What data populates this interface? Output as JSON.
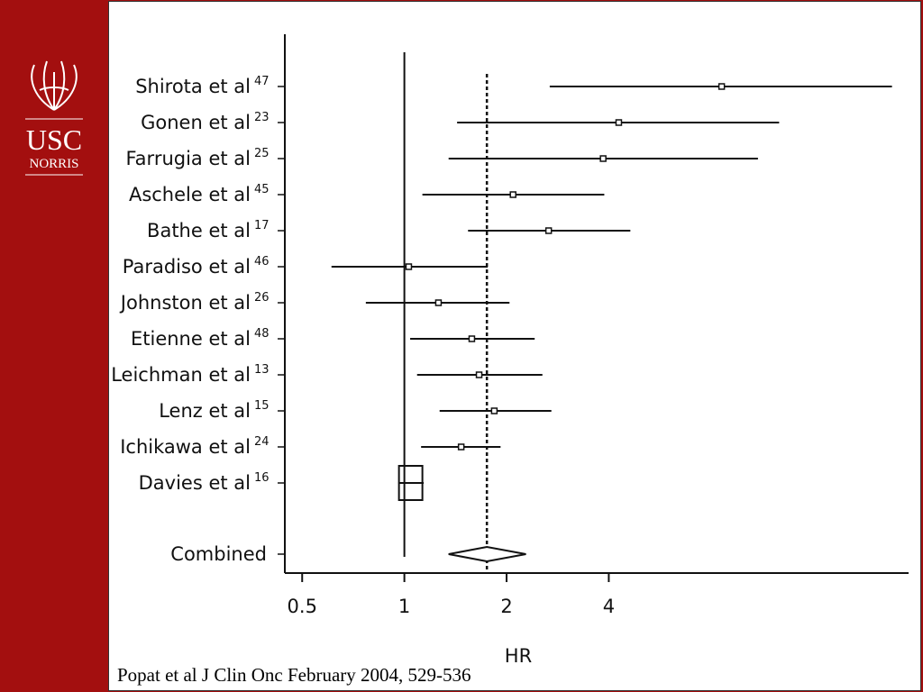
{
  "logo": {
    "name": "USC",
    "subname": "NORRIS"
  },
  "citation": "Popat et al J Clin Onc February 2004, 529-536",
  "chart_data": {
    "type": "forest",
    "x_label": "HR",
    "log_scale": true,
    "xlim": [
      0.45,
      30
    ],
    "xticks": [
      0.5,
      1,
      2,
      4
    ],
    "reference_line": 1,
    "color": "#111111",
    "studies": [
      {
        "name": "Shirota et al",
        "ref": "47",
        "estimate": 8.6,
        "lower": 2.68,
        "upper": 27.3
      },
      {
        "name": "Gonen et al",
        "ref": "23",
        "estimate": 4.28,
        "lower": 1.43,
        "upper": 12.7
      },
      {
        "name": "Farrugia et al",
        "ref": "25",
        "estimate": 3.85,
        "lower": 1.35,
        "upper": 11
      },
      {
        "name": "Aschele et al",
        "ref": "45",
        "estimate": 2.09,
        "lower": 1.13,
        "upper": 3.88
      },
      {
        "name": "Bathe et al",
        "ref": "17",
        "estimate": 2.66,
        "lower": 1.54,
        "upper": 4.63
      },
      {
        "name": "Paradiso et al",
        "ref": "46",
        "estimate": 1.03,
        "lower": 0.61,
        "upper": 1.76
      },
      {
        "name": "Johnston et al",
        "ref": "26",
        "estimate": 1.26,
        "lower": 0.77,
        "upper": 2.04
      },
      {
        "name": "Etienne et al",
        "ref": "48",
        "estimate": 1.58,
        "lower": 1.04,
        "upper": 2.42
      },
      {
        "name": "Leichman et al",
        "ref": "13",
        "estimate": 1.66,
        "lower": 1.09,
        "upper": 2.55
      },
      {
        "name": "Lenz et al",
        "ref": "15",
        "estimate": 1.84,
        "lower": 1.27,
        "upper": 2.71
      },
      {
        "name": "Ichikawa et al",
        "ref": "24",
        "estimate": 1.47,
        "lower": 1.12,
        "upper": 1.92
      },
      {
        "name": "Davies et al",
        "ref": "16",
        "estimate": 1.0,
        "lower": 0.96,
        "upper": 1.14
      }
    ],
    "combined": {
      "name": "Combined",
      "estimate": 1.75,
      "lower": 1.35,
      "upper": 2.28
    }
  }
}
